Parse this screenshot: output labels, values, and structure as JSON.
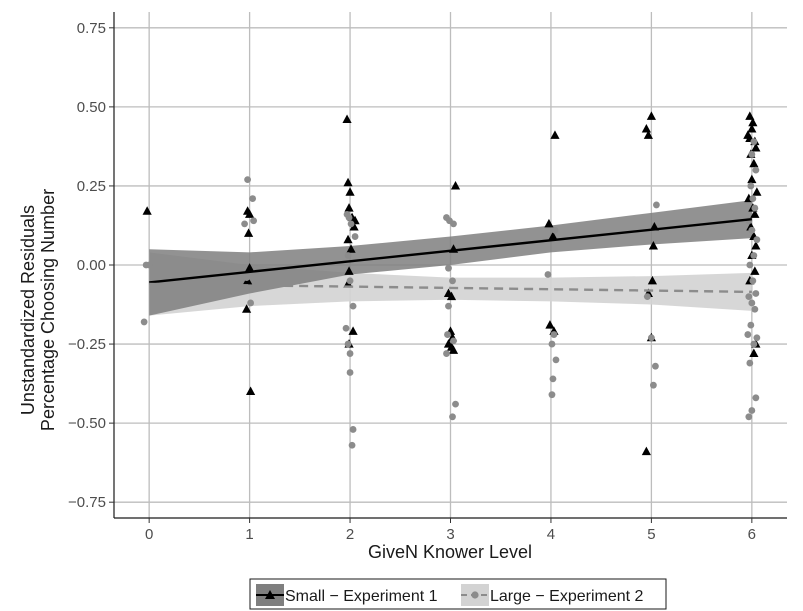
{
  "chart_data": {
    "type": "scatter",
    "title": "",
    "xlabel": "GiveN Knower Level",
    "ylabel_lines": [
      "Unstandardized Residuals",
      "Percentage Choosing Number"
    ],
    "xlim": [
      -0.35,
      6.35
    ],
    "ylim": [
      -0.8,
      0.8
    ],
    "x_ticks": [
      0,
      1,
      2,
      3,
      4,
      5,
      6
    ],
    "y_ticks": [
      -0.75,
      -0.5,
      -0.25,
      0.0,
      0.25,
      0.5,
      0.75
    ],
    "y_tick_labels": [
      "−0.75",
      "−0.50",
      "−0.25",
      "0.00",
      "0.25",
      "0.50",
      "0.75"
    ],
    "grid": true,
    "legend_position": "bottom",
    "series": [
      {
        "name": "Small − Experiment 1",
        "marker": "triangle",
        "color": "#000000",
        "line_style": "solid",
        "band_color": "#7f7f7f",
        "fit": [
          [
            0,
            -0.055
          ],
          [
            6,
            0.145
          ]
        ],
        "band": [
          [
            0,
            -0.16,
            0.05
          ],
          [
            1,
            -0.09,
            0.04
          ],
          [
            2,
            -0.03,
            0.06
          ],
          [
            3,
            0.0,
            0.09
          ],
          [
            4,
            0.04,
            0.125
          ],
          [
            5,
            0.065,
            0.165
          ],
          [
            6,
            0.085,
            0.205
          ]
        ],
        "points": [
          [
            -0.02,
            0.17
          ],
          [
            0.98,
            0.17
          ],
          [
            1.0,
            0.16
          ],
          [
            0.99,
            0.1
          ],
          [
            1.0,
            -0.01
          ],
          [
            0.98,
            -0.05
          ],
          [
            0.97,
            -0.14
          ],
          [
            1.01,
            -0.4
          ],
          [
            1.97,
            0.46
          ],
          [
            1.98,
            0.26
          ],
          [
            2.0,
            0.23
          ],
          [
            1.99,
            0.18
          ],
          [
            2.02,
            0.15
          ],
          [
            2.05,
            0.14
          ],
          [
            2.04,
            0.12
          ],
          [
            1.98,
            0.08
          ],
          [
            2.01,
            0.05
          ],
          [
            1.99,
            -0.02
          ],
          [
            1.98,
            -0.06
          ],
          [
            2.03,
            -0.21
          ],
          [
            1.99,
            -0.25
          ],
          [
            3.05,
            0.25
          ],
          [
            3.03,
            0.05
          ],
          [
            2.98,
            -0.09
          ],
          [
            3.01,
            -0.1
          ],
          [
            3.0,
            -0.21
          ],
          [
            3.02,
            -0.23
          ],
          [
            2.98,
            -0.25
          ],
          [
            3.01,
            -0.26
          ],
          [
            3.03,
            -0.27
          ],
          [
            4.04,
            0.41
          ],
          [
            3.98,
            0.13
          ],
          [
            4.02,
            0.09
          ],
          [
            3.99,
            -0.19
          ],
          [
            4.03,
            -0.21
          ],
          [
            4.95,
            0.43
          ],
          [
            4.97,
            0.41
          ],
          [
            5.0,
            0.47
          ],
          [
            5.03,
            0.12
          ],
          [
            5.02,
            0.06
          ],
          [
            5.01,
            -0.05
          ],
          [
            4.97,
            -0.09
          ],
          [
            5.0,
            -0.23
          ],
          [
            4.95,
            -0.59
          ],
          [
            5.98,
            0.47
          ],
          [
            6.01,
            0.45
          ],
          [
            6.0,
            0.43
          ],
          [
            5.96,
            0.41
          ],
          [
            5.98,
            0.4
          ],
          [
            6.03,
            0.39
          ],
          [
            6.04,
            0.37
          ],
          [
            5.99,
            0.35
          ],
          [
            6.02,
            0.32
          ],
          [
            6.0,
            0.27
          ],
          [
            6.05,
            0.23
          ],
          [
            5.97,
            0.21
          ],
          [
            6.01,
            0.18
          ],
          [
            6.03,
            0.16
          ],
          [
            5.99,
            0.12
          ],
          [
            6.02,
            0.09
          ],
          [
            6.04,
            0.06
          ],
          [
            6.0,
            0.03
          ],
          [
            6.03,
            -0.02
          ],
          [
            5.98,
            -0.05
          ],
          [
            6.02,
            -0.28
          ],
          [
            6.04,
            -0.25
          ]
        ]
      },
      {
        "name": "Large − Experiment 2",
        "marker": "circle",
        "color": "#8c8c8c",
        "line_style": "dashed",
        "band_color": "#d3d3d3",
        "fit": [
          [
            0,
            -0.06
          ],
          [
            6,
            -0.085
          ]
        ],
        "band": [
          [
            0,
            -0.16,
            0.04
          ],
          [
            1,
            -0.13,
            0.0
          ],
          [
            2,
            -0.115,
            -0.025
          ],
          [
            3,
            -0.11,
            -0.04
          ],
          [
            4,
            -0.115,
            -0.04
          ],
          [
            5,
            -0.125,
            -0.035
          ],
          [
            6,
            -0.145,
            -0.025
          ]
        ],
        "points": [
          [
            -0.05,
            -0.18
          ],
          [
            -0.03,
            0.0
          ],
          [
            0.0,
            0.0
          ],
          [
            0.98,
            0.27
          ],
          [
            0.95,
            0.13
          ],
          [
            1.03,
            0.21
          ],
          [
            1.04,
            0.14
          ],
          [
            0.97,
            -0.04
          ],
          [
            1.01,
            -0.12
          ],
          [
            1.97,
            0.16
          ],
          [
            1.99,
            0.15
          ],
          [
            2.01,
            0.13
          ],
          [
            2.05,
            0.09
          ],
          [
            1.98,
            0.03
          ],
          [
            2.0,
            -0.05
          ],
          [
            2.03,
            -0.13
          ],
          [
            1.96,
            -0.2
          ],
          [
            1.98,
            -0.25
          ],
          [
            2.0,
            -0.28
          ],
          [
            2.0,
            -0.34
          ],
          [
            2.03,
            -0.52
          ],
          [
            2.02,
            -0.57
          ],
          [
            2.96,
            0.15
          ],
          [
            2.99,
            0.14
          ],
          [
            3.03,
            0.13
          ],
          [
            2.98,
            -0.01
          ],
          [
            3.02,
            -0.05
          ],
          [
            2.98,
            -0.13
          ],
          [
            2.97,
            -0.22
          ],
          [
            3.03,
            -0.24
          ],
          [
            2.96,
            -0.28
          ],
          [
            3.05,
            -0.44
          ],
          [
            3.02,
            -0.48
          ],
          [
            3.97,
            -0.03
          ],
          [
            4.04,
            0.11
          ],
          [
            4.03,
            -0.22
          ],
          [
            4.01,
            -0.25
          ],
          [
            4.05,
            -0.3
          ],
          [
            4.02,
            -0.36
          ],
          [
            4.01,
            -0.41
          ],
          [
            5.05,
            0.19
          ],
          [
            4.96,
            -0.1
          ],
          [
            5.0,
            -0.23
          ],
          [
            5.04,
            -0.32
          ],
          [
            5.02,
            -0.38
          ],
          [
            5.97,
            -0.48
          ],
          [
            6.0,
            -0.46
          ],
          [
            6.04,
            -0.42
          ],
          [
            5.98,
            -0.31
          ],
          [
            6.02,
            -0.25
          ],
          [
            6.05,
            -0.23
          ],
          [
            5.96,
            -0.22
          ],
          [
            5.99,
            -0.19
          ],
          [
            6.03,
            -0.14
          ],
          [
            6.0,
            -0.12
          ],
          [
            5.97,
            -0.1
          ],
          [
            6.04,
            -0.09
          ],
          [
            6.01,
            -0.05
          ],
          [
            5.98,
            0.0
          ],
          [
            6.02,
            0.03
          ],
          [
            6.05,
            0.08
          ],
          [
            6.0,
            0.11
          ],
          [
            5.97,
            0.14
          ],
          [
            6.03,
            0.18
          ],
          [
            6.01,
            0.21
          ],
          [
            5.99,
            0.25
          ],
          [
            6.04,
            0.3
          ],
          [
            6.0,
            0.35
          ],
          [
            6.02,
            0.39
          ]
        ]
      }
    ]
  }
}
